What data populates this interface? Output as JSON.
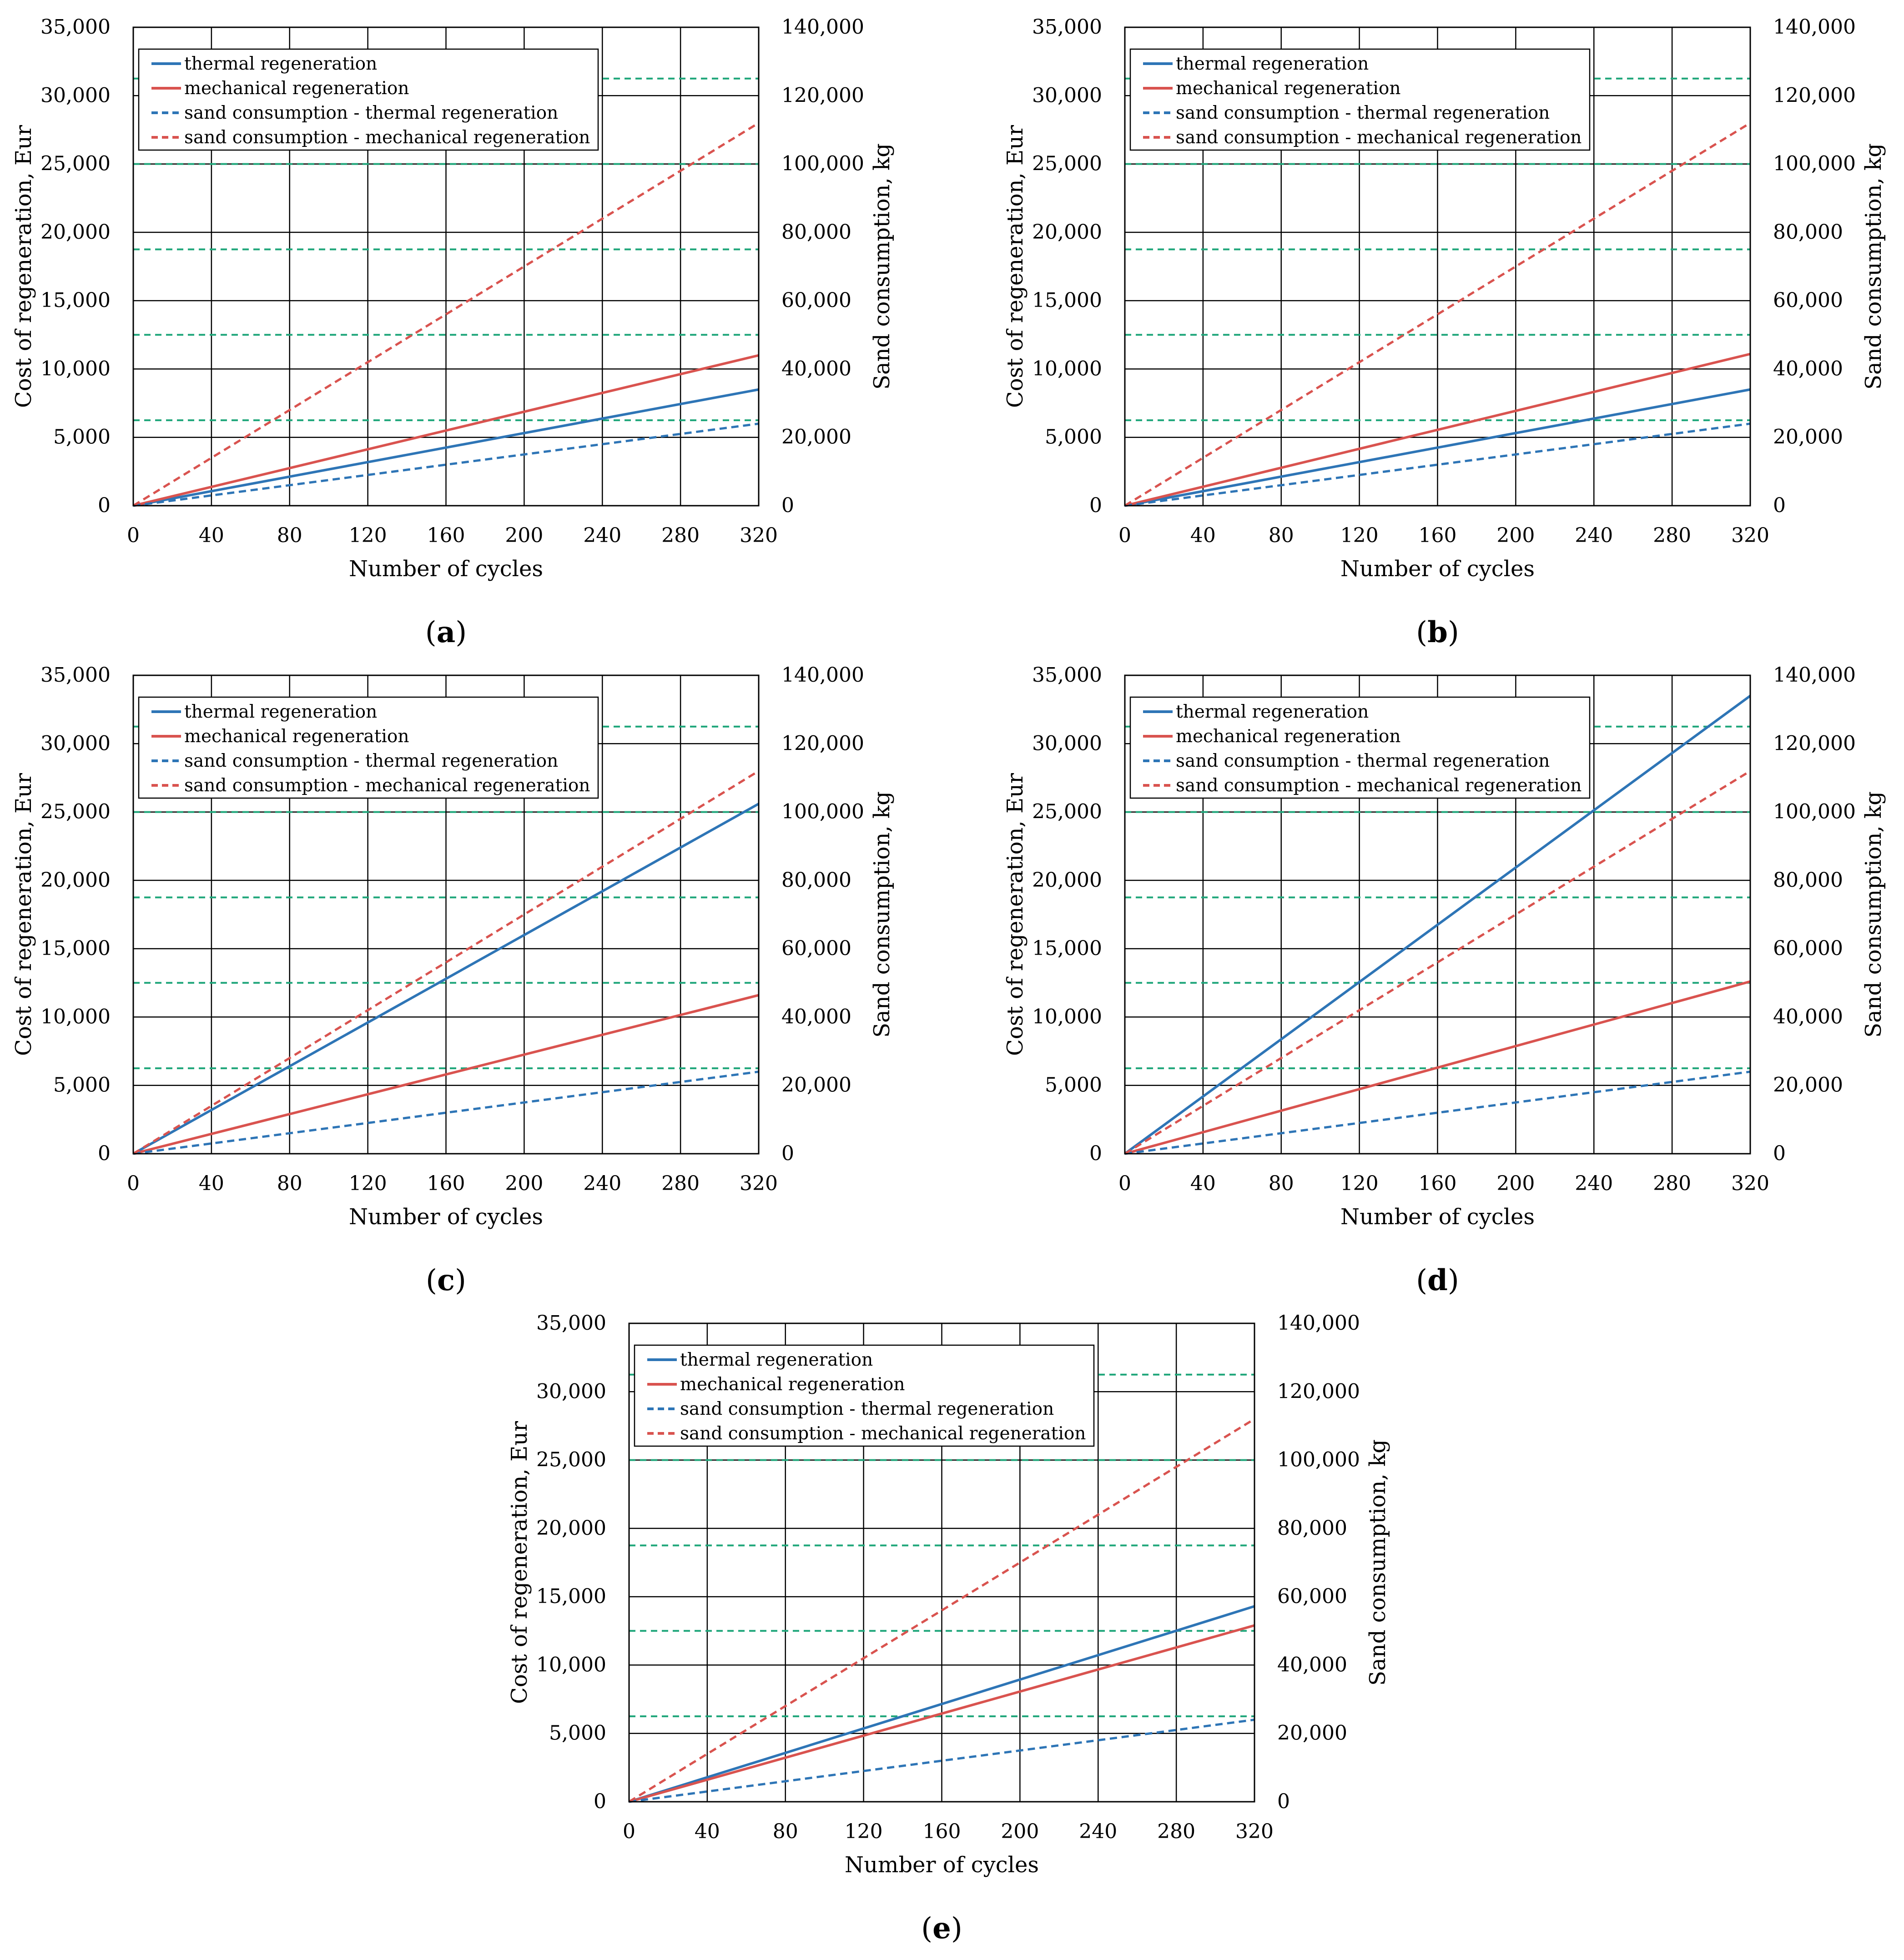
{
  "colors": {
    "thermal": "#2E75B6",
    "mechanical": "#D9534F",
    "grid_dashed": "#1FA67A",
    "axis": "#000000"
  },
  "chart_data": [
    {
      "panel_label": "a",
      "type": "line",
      "xlabel": "Number of cycles",
      "ylabel_left": "Cost of regeneration, Eur",
      "ylabel_right": "Sand consumption, kg",
      "xlim": [
        0,
        320
      ],
      "ylim_left": [
        0,
        35000
      ],
      "ylim_right": [
        0,
        140000
      ],
      "x_ticks": [
        "0",
        "40",
        "80",
        "120",
        "160",
        "200",
        "240",
        "280",
        "320"
      ],
      "y_left_ticks": [
        "0",
        "5,000",
        "10,000",
        "15,000",
        "20,000",
        "25,000",
        "30,000",
        "35,000"
      ],
      "y_right_ticks": [
        "0",
        "20,000",
        "40,000",
        "60,000",
        "80,000",
        "100,000",
        "120,000",
        "140,000"
      ],
      "right_axis_gridlines": [
        25000,
        50000,
        75000,
        100000,
        125000
      ],
      "legend": [
        "thermal regeneration",
        "mechanical regeneration",
        "sand consumption - thermal regeneration",
        "sand consumption - mechanical regeneration"
      ],
      "series": [
        {
          "name": "thermal regeneration",
          "axis": "left",
          "style": "solid",
          "color": "thermal",
          "x": [
            0,
            320
          ],
          "y": [
            0,
            8500
          ]
        },
        {
          "name": "mechanical regeneration",
          "axis": "left",
          "style": "solid",
          "color": "mechanical",
          "x": [
            0,
            320
          ],
          "y": [
            0,
            11000
          ]
        },
        {
          "name": "sand consumption - thermal regeneration",
          "axis": "right",
          "style": "dashed",
          "color": "thermal",
          "x": [
            0,
            320
          ],
          "y": [
            0,
            24000
          ]
        },
        {
          "name": "sand consumption - mechanical regeneration",
          "axis": "right",
          "style": "dashed",
          "color": "mechanical",
          "x": [
            0,
            320
          ],
          "y": [
            0,
            112000
          ]
        }
      ]
    },
    {
      "panel_label": "b",
      "type": "line",
      "xlabel": "Number of cycles",
      "ylabel_left": "Cost of regeneration, Eur",
      "ylabel_right": "Sand consumption, kg",
      "xlim": [
        0,
        320
      ],
      "ylim_left": [
        0,
        35000
      ],
      "ylim_right": [
        0,
        140000
      ],
      "x_ticks": [
        "0",
        "40",
        "80",
        "120",
        "160",
        "200",
        "240",
        "280",
        "320"
      ],
      "y_left_ticks": [
        "0",
        "5,000",
        "10,000",
        "15,000",
        "20,000",
        "25,000",
        "30,000",
        "35,000"
      ],
      "y_right_ticks": [
        "0",
        "20,000",
        "40,000",
        "60,000",
        "80,000",
        "100,000",
        "120,000",
        "140,000"
      ],
      "right_axis_gridlines": [
        25000,
        50000,
        75000,
        100000,
        125000
      ],
      "legend": [
        "thermal regeneration",
        "mechanical regeneration",
        "sand consumption - thermal regeneration",
        "sand consumption - mechanical regeneration"
      ],
      "series": [
        {
          "name": "thermal regeneration",
          "axis": "left",
          "style": "solid",
          "color": "thermal",
          "x": [
            0,
            320
          ],
          "y": [
            0,
            8500
          ]
        },
        {
          "name": "mechanical regeneration",
          "axis": "left",
          "style": "solid",
          "color": "mechanical",
          "x": [
            0,
            320
          ],
          "y": [
            0,
            11100
          ]
        },
        {
          "name": "sand consumption - thermal regeneration",
          "axis": "right",
          "style": "dashed",
          "color": "thermal",
          "x": [
            0,
            320
          ],
          "y": [
            0,
            24000
          ]
        },
        {
          "name": "sand consumption - mechanical regeneration",
          "axis": "right",
          "style": "dashed",
          "color": "mechanical",
          "x": [
            0,
            320
          ],
          "y": [
            0,
            112000
          ]
        }
      ]
    },
    {
      "panel_label": "c",
      "type": "line",
      "xlabel": "Number of cycles",
      "ylabel_left": "Cost of regeneration, Eur",
      "ylabel_right": "Sand consumption, kg",
      "xlim": [
        0,
        320
      ],
      "ylim_left": [
        0,
        35000
      ],
      "ylim_right": [
        0,
        140000
      ],
      "x_ticks": [
        "0",
        "40",
        "80",
        "120",
        "160",
        "200",
        "240",
        "280",
        "320"
      ],
      "y_left_ticks": [
        "0",
        "5,000",
        "10,000",
        "15,000",
        "20,000",
        "25,000",
        "30,000",
        "35,000"
      ],
      "y_right_ticks": [
        "0",
        "20,000",
        "40,000",
        "60,000",
        "80,000",
        "100,000",
        "120,000",
        "140,000"
      ],
      "right_axis_gridlines": [
        25000,
        50000,
        75000,
        100000,
        125000
      ],
      "legend": [
        "thermal regeneration",
        "mechanical regeneration",
        "sand consumption - thermal regeneration",
        "sand consumption - mechanical regeneration"
      ],
      "series": [
        {
          "name": "thermal regeneration",
          "axis": "left",
          "style": "solid",
          "color": "thermal",
          "x": [
            0,
            320
          ],
          "y": [
            0,
            25600
          ]
        },
        {
          "name": "mechanical regeneration",
          "axis": "left",
          "style": "solid",
          "color": "mechanical",
          "x": [
            0,
            320
          ],
          "y": [
            0,
            11600
          ]
        },
        {
          "name": "sand consumption - thermal regeneration",
          "axis": "right",
          "style": "dashed",
          "color": "thermal",
          "x": [
            0,
            320
          ],
          "y": [
            0,
            24000
          ]
        },
        {
          "name": "sand consumption - mechanical regeneration",
          "axis": "right",
          "style": "dashed",
          "color": "mechanical",
          "x": [
            0,
            320
          ],
          "y": [
            0,
            112000
          ]
        }
      ]
    },
    {
      "panel_label": "d",
      "type": "line",
      "xlabel": "Number of cycles",
      "ylabel_left": "Cost of regeneration, Eur",
      "ylabel_right": "Sand consumption, kg",
      "xlim": [
        0,
        320
      ],
      "ylim_left": [
        0,
        35000
      ],
      "ylim_right": [
        0,
        140000
      ],
      "x_ticks": [
        "0",
        "40",
        "80",
        "120",
        "160",
        "200",
        "240",
        "280",
        "320"
      ],
      "y_left_ticks": [
        "0",
        "5,000",
        "10,000",
        "15,000",
        "20,000",
        "25,000",
        "30,000",
        "35,000"
      ],
      "y_right_ticks": [
        "0",
        "20,000",
        "40,000",
        "60,000",
        "80,000",
        "100,000",
        "120,000",
        "140,000"
      ],
      "right_axis_gridlines": [
        25000,
        50000,
        75000,
        100000,
        125000
      ],
      "legend": [
        "thermal regeneration",
        "mechanical regeneration",
        "sand consumption - thermal regeneration",
        "sand consumption - mechanical regeneration"
      ],
      "series": [
        {
          "name": "thermal regeneration",
          "axis": "left",
          "style": "solid",
          "color": "thermal",
          "x": [
            0,
            320
          ],
          "y": [
            0,
            33500
          ]
        },
        {
          "name": "mechanical regeneration",
          "axis": "left",
          "style": "solid",
          "color": "mechanical",
          "x": [
            0,
            320
          ],
          "y": [
            0,
            12600
          ]
        },
        {
          "name": "sand consumption - thermal regeneration",
          "axis": "right",
          "style": "dashed",
          "color": "thermal",
          "x": [
            0,
            320
          ],
          "y": [
            0,
            24000
          ]
        },
        {
          "name": "sand consumption - mechanical regeneration",
          "axis": "right",
          "style": "dashed",
          "color": "mechanical",
          "x": [
            0,
            320
          ],
          "y": [
            0,
            112000
          ]
        }
      ]
    },
    {
      "panel_label": "e",
      "type": "line",
      "xlabel": "Number of cycles",
      "ylabel_left": "Cost of regeneration, Eur",
      "ylabel_right": "Sand consumption, kg",
      "xlim": [
        0,
        320
      ],
      "ylim_left": [
        0,
        35000
      ],
      "ylim_right": [
        0,
        140000
      ],
      "x_ticks": [
        "0",
        "40",
        "80",
        "120",
        "160",
        "200",
        "240",
        "280",
        "320"
      ],
      "y_left_ticks": [
        "0",
        "5,000",
        "10,000",
        "15,000",
        "20,000",
        "25,000",
        "30,000",
        "35,000"
      ],
      "y_right_ticks": [
        "0",
        "20,000",
        "40,000",
        "60,000",
        "80,000",
        "100,000",
        "120,000",
        "140,000"
      ],
      "right_axis_gridlines": [
        25000,
        50000,
        75000,
        100000,
        125000
      ],
      "legend": [
        "thermal regeneration",
        "mechanical regeneration",
        "sand consumption - thermal regeneration",
        "sand consumption - mechanical regeneration"
      ],
      "series": [
        {
          "name": "thermal regeneration",
          "axis": "left",
          "style": "solid",
          "color": "thermal",
          "x": [
            0,
            320
          ],
          "y": [
            0,
            14300
          ]
        },
        {
          "name": "mechanical regeneration",
          "axis": "left",
          "style": "solid",
          "color": "mechanical",
          "x": [
            0,
            320
          ],
          "y": [
            0,
            12900
          ]
        },
        {
          "name": "sand consumption - thermal regeneration",
          "axis": "right",
          "style": "dashed",
          "color": "thermal",
          "x": [
            0,
            320
          ],
          "y": [
            0,
            24000
          ]
        },
        {
          "name": "sand consumption - mechanical regeneration",
          "axis": "right",
          "style": "dashed",
          "color": "mechanical",
          "x": [
            0,
            320
          ],
          "y": [
            0,
            112000
          ]
        }
      ]
    }
  ]
}
